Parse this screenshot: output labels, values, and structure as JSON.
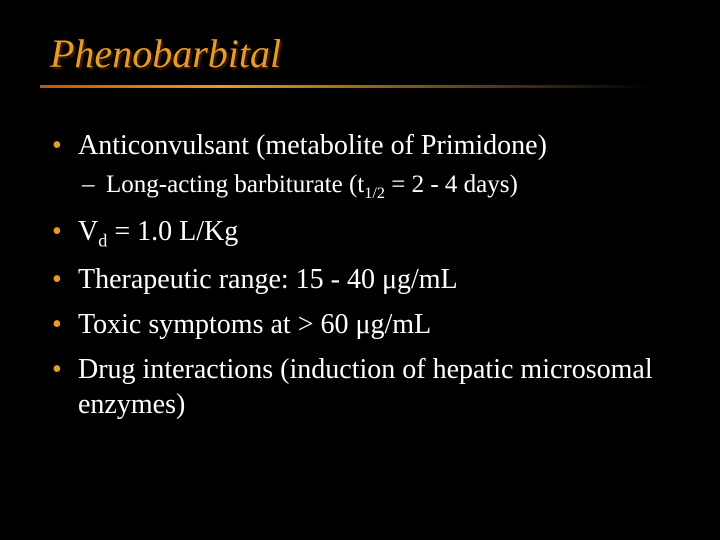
{
  "slide": {
    "title": "Phenobarbital",
    "title_color": "#e69a28",
    "title_fontsize": 40,
    "title_fontstyle": "italic",
    "background_color": "#000000",
    "rule_gradient": [
      "#c05800",
      "#e69a28",
      "#000000"
    ],
    "bullet_color": "#e69a28",
    "text_color": "#ffffff",
    "body_fontsize": 28,
    "sub_fontsize": 25,
    "font_family": "Times New Roman",
    "bullets": [
      {
        "text": "Anticonvulsant (metabolite of Primidone)",
        "sub": [
          {
            "html": "Long-acting barbiturate (t<sub>1/2</sub> = 2 - 4 days)"
          }
        ]
      },
      {
        "html": "V<sub>d</sub> = 1.0 L/Kg"
      },
      {
        "text": "Therapeutic range: 15 - 40 μg/mL"
      },
      {
        "text": "Toxic symptoms at > 60 μg/mL"
      },
      {
        "text": "Drug interactions (induction of hepatic microsomal enzymes)"
      }
    ]
  }
}
